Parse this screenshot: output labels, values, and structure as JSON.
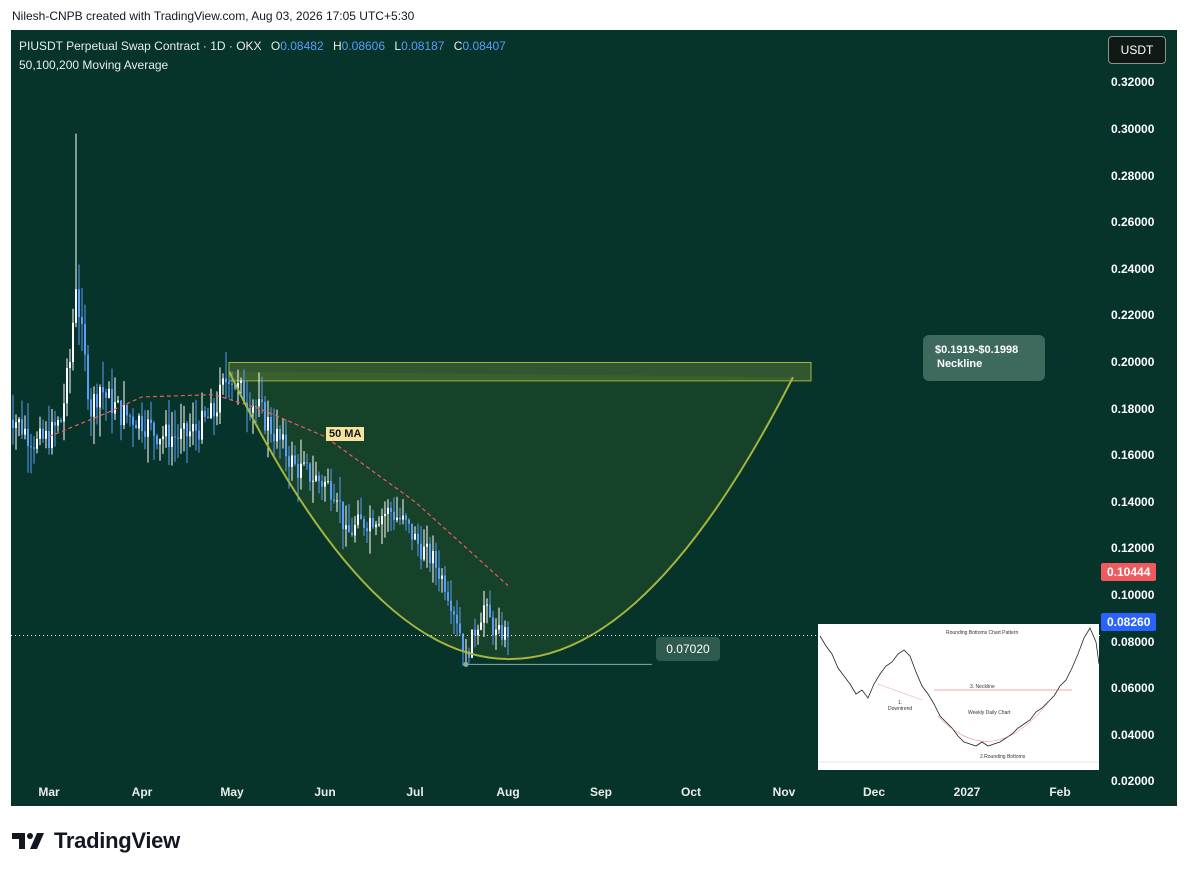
{
  "header": {
    "credit": "Nilesh-CNPB created with TradingView.com, Aug 03, 2026 17:05 UTC+5:30"
  },
  "legend": {
    "symbol_line": "PIUSDT Perpetual Swap Contract · 1D · OKX",
    "open_label": "O",
    "open": "0.08482",
    "high_label": "H",
    "high": "0.08606",
    "low_label": "L",
    "low": "0.08187",
    "close_label": "C",
    "close": "0.08407",
    "indicator": "50,100,200 Moving Average"
  },
  "currency_button": "USDT",
  "y_axis": {
    "ticks": [
      "0.32000",
      "0.30000",
      "0.28000",
      "0.26000",
      "0.24000",
      "0.22000",
      "0.20000",
      "0.18000",
      "0.16000",
      "0.14000",
      "0.12000",
      "0.10000",
      "0.08000",
      "0.06000",
      "0.04000",
      "0.02000"
    ]
  },
  "x_axis": {
    "ticks": [
      "Mar",
      "Apr",
      "May",
      "Jun",
      "Jul",
      "Aug",
      "Sep",
      "Oct",
      "Nov",
      "Dec",
      "2027",
      "Feb"
    ]
  },
  "price_tags": {
    "ma_value": "0.10444",
    "ma_color": "#f05a5e",
    "last_price": "0.08260",
    "last_color": "#2962ff"
  },
  "annotations": {
    "ma_label": "50 MA",
    "low_label": "0.07020",
    "neckline_range": "$0.1919-$0.1998",
    "neckline_text": "Neckline"
  },
  "inset": {
    "title": "Rounding Bottoms Chart Pattern",
    "neckline": "3. Neckline",
    "downtrend_num": "1.",
    "downtrend": "Downtrend",
    "subtitle": "Weekly Daily Chart",
    "bottoms": "2.Rounding Bottoms"
  },
  "logo": {
    "text": "TradingView"
  },
  "colors": {
    "background": "#06332a",
    "candle_up": "#ffffff",
    "candle_down": "#5b9cf6",
    "pattern_line": "#a5b53d",
    "ma_line": "#f05a5e"
  },
  "chart_data": {
    "type": "candlestick",
    "symbol": "PIUSDT",
    "timeframe": "1D",
    "y_range": [
      0.015,
      0.325
    ],
    "x_range": [
      "2026-02-15",
      "2027-03-01"
    ],
    "last_price": 0.0826,
    "moving_average_50": 0.10444,
    "series": [
      {
        "name": "price",
        "points": [
          [
            "2026-02-15",
            0.18
          ],
          [
            "2026-02-20",
            0.172
          ],
          [
            "2026-02-25",
            0.165
          ],
          [
            "2026-03-01",
            0.168
          ],
          [
            "2026-03-05",
            0.175
          ],
          [
            "2026-03-08",
            0.2
          ],
          [
            "2026-03-10",
            0.235
          ],
          [
            "2026-03-12",
            0.21
          ],
          [
            "2026-03-15",
            0.18
          ],
          [
            "2026-03-18",
            0.19
          ],
          [
            "2026-03-20",
            0.185
          ],
          [
            "2026-03-25",
            0.178
          ],
          [
            "2026-04-01",
            0.175
          ],
          [
            "2026-04-05",
            0.17
          ],
          [
            "2026-04-10",
            0.168
          ],
          [
            "2026-04-15",
            0.168
          ],
          [
            "2026-04-20",
            0.172
          ],
          [
            "2026-04-25",
            0.178
          ],
          [
            "2026-04-30",
            0.196
          ],
          [
            "2026-05-03",
            0.188
          ],
          [
            "2026-05-08",
            0.183
          ],
          [
            "2026-05-15",
            0.17
          ],
          [
            "2026-05-22",
            0.155
          ],
          [
            "2026-05-29",
            0.15
          ],
          [
            "2026-06-05",
            0.145
          ],
          [
            "2026-06-08",
            0.125
          ],
          [
            "2026-06-12",
            0.13
          ],
          [
            "2026-06-18",
            0.134
          ],
          [
            "2026-06-23",
            0.136
          ],
          [
            "2026-06-28",
            0.13
          ],
          [
            "2026-07-03",
            0.12
          ],
          [
            "2026-07-07",
            0.115
          ],
          [
            "2026-07-11",
            0.105
          ],
          [
            "2026-07-15",
            0.09
          ],
          [
            "2026-07-18",
            0.073
          ],
          [
            "2026-07-21",
            0.085
          ],
          [
            "2026-07-24",
            0.095
          ],
          [
            "2026-07-28",
            0.083
          ],
          [
            "2026-08-01",
            0.084
          ]
        ]
      },
      {
        "name": "50 MA",
        "points": [
          [
            "2026-03-01",
            0.168
          ],
          [
            "2026-03-20",
            0.178
          ],
          [
            "2026-04-01",
            0.185
          ],
          [
            "2026-04-25",
            0.186
          ],
          [
            "2026-05-10",
            0.18
          ],
          [
            "2026-06-01",
            0.168
          ],
          [
            "2026-07-01",
            0.14
          ],
          [
            "2026-07-20",
            0.118
          ],
          [
            "2026-08-01",
            0.104
          ]
        ]
      }
    ],
    "neckline_zone": [
      0.1919,
      0.1998
    ],
    "neckline_zone_x": [
      "2026-04-30",
      "2026-11-10"
    ],
    "rounding_bottom": {
      "start": [
        "2026-04-30",
        0.196
      ],
      "bottom": [
        "2026-08-01",
        0.0725
      ],
      "end": [
        "2026-11-04",
        0.1935
      ]
    },
    "swing_low": 0.0702
  }
}
